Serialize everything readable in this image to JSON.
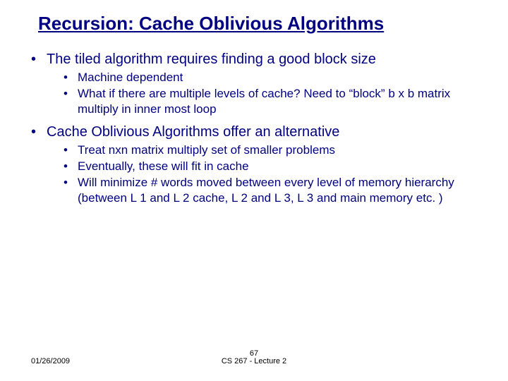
{
  "title": "Recursion: Cache Oblivious Algorithms",
  "bullets": [
    {
      "text": "The tiled algorithm requires finding a good block size",
      "sub": [
        "Machine dependent",
        "What if there are multiple levels of cache? Need to “block” b x b matrix multiply in inner most loop"
      ]
    },
    {
      "text": "Cache Oblivious Algorithms offer an alternative",
      "sub": [
        "Treat nxn matrix multiply set of smaller problems",
        "Eventually, these will fit in cache",
        "Will minimize # words moved between every level of memory hierarchy (between L 1 and L 2 cache, L 2 and L 3, L 3 and main memory etc. )"
      ]
    }
  ],
  "footer": {
    "date": "01/26/2009",
    "center": "CS 267 - Lecture 2",
    "page": "67"
  },
  "colors": {
    "text": "#000080",
    "footer_text": "#000000",
    "background": "#ffffff"
  },
  "fonts": {
    "title_size_pt": 26,
    "level1_size_pt": 20,
    "level2_size_pt": 17,
    "footer_size_pt": 11,
    "family": "Arial"
  }
}
